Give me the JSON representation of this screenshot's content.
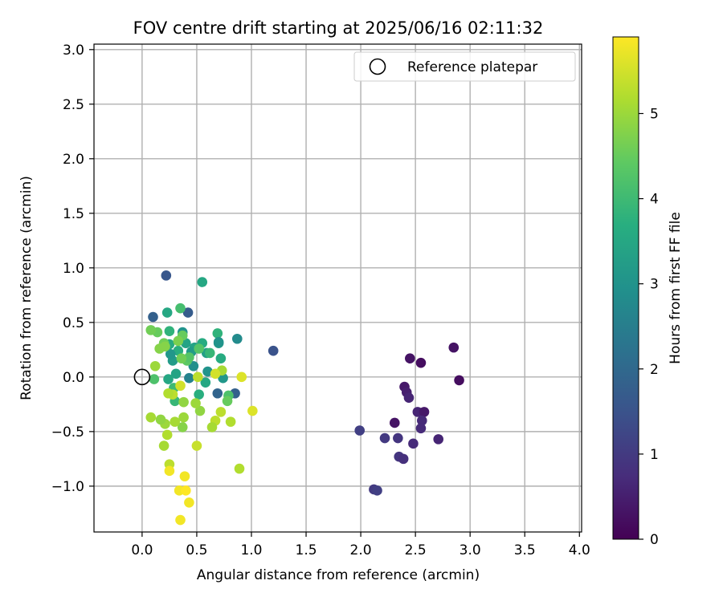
{
  "chart_data": {
    "type": "scatter",
    "title": "FOV centre drift starting at 2025/06/16 02:11:32",
    "xlabel": "Angular distance from reference (arcmin)",
    "ylabel": "Rotation from reference (arcmin)",
    "xlim": [
      -0.44,
      4.02
    ],
    "ylim": [
      -1.42,
      3.05
    ],
    "xticks": [
      "0.0",
      "0.5",
      "1.0",
      "1.5",
      "2.0",
      "2.5",
      "3.0",
      "3.5",
      "4.0"
    ],
    "yticks": [
      "−1.0",
      "−0.5",
      "0.0",
      "0.5",
      "1.0",
      "1.5",
      "2.0",
      "2.5",
      "3.0"
    ],
    "grid": true,
    "legend_placement": "upper right",
    "reference": {
      "name": "Reference platepar",
      "x": 0.0,
      "y": 0.0
    },
    "colorbar": {
      "label": "Hours from first FF file",
      "range": [
        0,
        5.9
      ],
      "ticks": [
        "0",
        "1",
        "2",
        "3",
        "4",
        "5"
      ],
      "colormap": "viridis"
    },
    "points": [
      {
        "x": 2.9,
        "y": -0.03,
        "h": 0.2
      },
      {
        "x": 2.85,
        "y": 0.27,
        "h": 0.3
      },
      {
        "x": 2.55,
        "y": 0.13,
        "h": 0.2
      },
      {
        "x": 2.45,
        "y": 0.17,
        "h": 0.3
      },
      {
        "x": 2.4,
        "y": -0.09,
        "h": 0.4
      },
      {
        "x": 2.42,
        "y": -0.14,
        "h": 0.5
      },
      {
        "x": 2.44,
        "y": -0.19,
        "h": 0.6
      },
      {
        "x": 2.52,
        "y": -0.32,
        "h": 0.6
      },
      {
        "x": 2.58,
        "y": -0.32,
        "h": 0.4
      },
      {
        "x": 2.31,
        "y": -0.42,
        "h": 0.3
      },
      {
        "x": 2.56,
        "y": -0.4,
        "h": 0.7
      },
      {
        "x": 2.55,
        "y": -0.47,
        "h": 0.7
      },
      {
        "x": 2.71,
        "y": -0.57,
        "h": 0.6
      },
      {
        "x": 2.48,
        "y": -0.61,
        "h": 0.7
      },
      {
        "x": 2.34,
        "y": -0.56,
        "h": 0.9
      },
      {
        "x": 2.22,
        "y": -0.56,
        "h": 1.0
      },
      {
        "x": 1.99,
        "y": -0.49,
        "h": 1.1
      },
      {
        "x": 2.35,
        "y": -0.73,
        "h": 0.9
      },
      {
        "x": 2.39,
        "y": -0.75,
        "h": 0.8
      },
      {
        "x": 2.12,
        "y": -1.03,
        "h": 1.0
      },
      {
        "x": 2.15,
        "y": -1.04,
        "h": 1.1
      },
      {
        "x": 1.2,
        "y": 0.24,
        "h": 1.5
      },
      {
        "x": 0.22,
        "y": 0.93,
        "h": 1.6
      },
      {
        "x": 0.1,
        "y": 0.55,
        "h": 1.8
      },
      {
        "x": 0.42,
        "y": 0.59,
        "h": 1.7
      },
      {
        "x": 0.85,
        "y": -0.15,
        "h": 1.8
      },
      {
        "x": 0.69,
        "y": -0.15,
        "h": 1.9
      },
      {
        "x": 0.55,
        "y": 0.87,
        "h": 3.5
      },
      {
        "x": 0.87,
        "y": 0.35,
        "h": 2.8
      },
      {
        "x": 0.23,
        "y": 0.59,
        "h": 3.5
      },
      {
        "x": 0.35,
        "y": 0.63,
        "h": 4.1
      },
      {
        "x": 0.7,
        "y": 0.31,
        "h": 3.2
      },
      {
        "x": 0.69,
        "y": 0.4,
        "h": 3.8
      },
      {
        "x": 0.72,
        "y": 0.17,
        "h": 3.6
      },
      {
        "x": 0.74,
        "y": -0.01,
        "h": 3.1
      },
      {
        "x": 0.7,
        "y": 0.32,
        "h": 3.0
      },
      {
        "x": 0.59,
        "y": 0.22,
        "h": 3.3
      },
      {
        "x": 0.6,
        "y": 0.05,
        "h": 3.0
      },
      {
        "x": 0.58,
        "y": -0.05,
        "h": 3.5
      },
      {
        "x": 0.52,
        "y": -0.16,
        "h": 3.7
      },
      {
        "x": 0.55,
        "y": 0.31,
        "h": 3.6
      },
      {
        "x": 0.48,
        "y": 0.27,
        "h": 3.4
      },
      {
        "x": 0.47,
        "y": 0.1,
        "h": 2.9
      },
      {
        "x": 0.43,
        "y": -0.01,
        "h": 2.6
      },
      {
        "x": 0.45,
        "y": 0.23,
        "h": 3.2
      },
      {
        "x": 0.4,
        "y": 0.31,
        "h": 3.4
      },
      {
        "x": 0.37,
        "y": 0.41,
        "h": 3.0
      },
      {
        "x": 0.33,
        "y": 0.24,
        "h": 3.7
      },
      {
        "x": 0.31,
        "y": 0.03,
        "h": 3.4
      },
      {
        "x": 0.28,
        "y": 0.15,
        "h": 3.2
      },
      {
        "x": 0.26,
        "y": 0.21,
        "h": 3.1
      },
      {
        "x": 0.25,
        "y": 0.3,
        "h": 3.6
      },
      {
        "x": 0.25,
        "y": 0.42,
        "h": 3.8
      },
      {
        "x": 0.29,
        "y": -0.1,
        "h": 4.0
      },
      {
        "x": 0.3,
        "y": -0.22,
        "h": 3.9
      },
      {
        "x": 0.24,
        "y": -0.02,
        "h": 3.5
      },
      {
        "x": 0.62,
        "y": 0.22,
        "h": 3.9
      },
      {
        "x": 0.52,
        "y": 0.26,
        "h": 4.3
      },
      {
        "x": 0.41,
        "y": 0.15,
        "h": 4.4
      },
      {
        "x": 0.43,
        "y": 0.18,
        "h": 4.3
      },
      {
        "x": 0.36,
        "y": 0.17,
        "h": 4.6
      },
      {
        "x": 0.37,
        "y": 0.38,
        "h": 4.5
      },
      {
        "x": 0.33,
        "y": 0.33,
        "h": 4.7
      },
      {
        "x": 0.2,
        "y": 0.31,
        "h": 4.6
      },
      {
        "x": 0.21,
        "y": 0.28,
        "h": 4.8
      },
      {
        "x": 0.16,
        "y": 0.26,
        "h": 4.8
      },
      {
        "x": 0.14,
        "y": 0.41,
        "h": 4.5
      },
      {
        "x": 0.08,
        "y": 0.43,
        "h": 4.6
      },
      {
        "x": 0.12,
        "y": 0.1,
        "h": 5.0
      },
      {
        "x": 0.11,
        "y": -0.02,
        "h": 4.2
      },
      {
        "x": 0.79,
        "y": -0.17,
        "h": 4.2
      },
      {
        "x": 0.78,
        "y": -0.22,
        "h": 4.5
      },
      {
        "x": 0.73,
        "y": 0.06,
        "h": 5.1
      },
      {
        "x": 0.72,
        "y": -0.32,
        "h": 5.3
      },
      {
        "x": 0.67,
        "y": -0.4,
        "h": 5.3
      },
      {
        "x": 0.64,
        "y": -0.46,
        "h": 5.1
      },
      {
        "x": 0.81,
        "y": -0.41,
        "h": 5.2
      },
      {
        "x": 0.89,
        "y": -0.84,
        "h": 5.2
      },
      {
        "x": 0.91,
        "y": 0.0,
        "h": 5.6
      },
      {
        "x": 1.01,
        "y": -0.31,
        "h": 5.6
      },
      {
        "x": 0.51,
        "y": 0.0,
        "h": 5.3
      },
      {
        "x": 0.5,
        "y": -0.63,
        "h": 5.4
      },
      {
        "x": 0.53,
        "y": -0.31,
        "h": 4.9
      },
      {
        "x": 0.49,
        "y": -0.24,
        "h": 5.0
      },
      {
        "x": 0.38,
        "y": -0.23,
        "h": 4.9
      },
      {
        "x": 0.37,
        "y": -0.46,
        "h": 4.8
      },
      {
        "x": 0.38,
        "y": -0.37,
        "h": 5.0
      },
      {
        "x": 0.3,
        "y": -0.41,
        "h": 5.1
      },
      {
        "x": 0.21,
        "y": -0.43,
        "h": 5.0
      },
      {
        "x": 0.17,
        "y": -0.39,
        "h": 4.9
      },
      {
        "x": 0.08,
        "y": -0.37,
        "h": 5.1
      },
      {
        "x": 0.23,
        "y": -0.53,
        "h": 5.2
      },
      {
        "x": 0.2,
        "y": -0.63,
        "h": 5.1
      },
      {
        "x": 0.25,
        "y": -0.8,
        "h": 5.3
      },
      {
        "x": 0.28,
        "y": -0.16,
        "h": 5.3
      },
      {
        "x": 0.24,
        "y": -0.15,
        "h": 5.2
      },
      {
        "x": 0.35,
        "y": -0.08,
        "h": 5.5
      },
      {
        "x": 0.67,
        "y": 0.03,
        "h": 5.5
      },
      {
        "x": 0.25,
        "y": -0.86,
        "h": 5.8
      },
      {
        "x": 0.39,
        "y": -0.91,
        "h": 5.8
      },
      {
        "x": 0.34,
        "y": -1.04,
        "h": 5.8
      },
      {
        "x": 0.4,
        "y": -1.04,
        "h": 5.9
      },
      {
        "x": 0.43,
        "y": -1.15,
        "h": 5.8
      },
      {
        "x": 0.35,
        "y": -1.31,
        "h": 5.8
      }
    ]
  }
}
